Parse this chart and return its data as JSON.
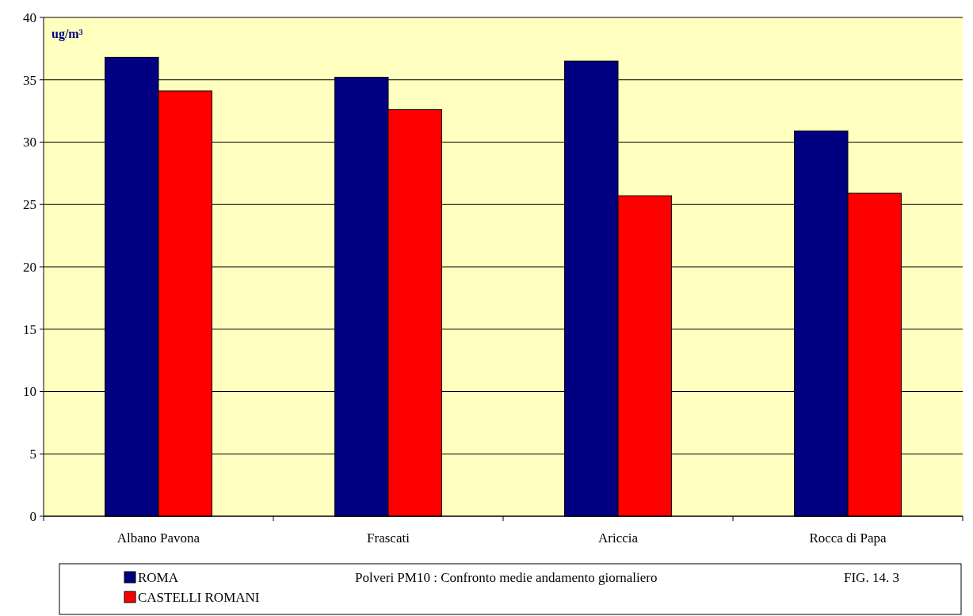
{
  "chart_data": {
    "type": "bar",
    "title": "Polveri PM10 : Confronto medie andamento giornaliero",
    "ylabel": "ug/m³",
    "annotations": [
      "FIG. 14. 3"
    ],
    "categories": [
      "Albano Pavona",
      "Frascati",
      "Ariccia",
      "Rocca di Papa"
    ],
    "series": [
      {
        "name": "ROMA",
        "color": "#000080",
        "values": [
          36.8,
          35.2,
          36.5,
          30.9
        ]
      },
      {
        "name": "CASTELLI ROMANI",
        "color": "#ff0000",
        "values": [
          34.1,
          32.6,
          25.7,
          25.9
        ]
      }
    ],
    "ylim": [
      0,
      40
    ],
    "yticks": [
      0,
      5,
      10,
      15,
      20,
      25,
      30,
      35,
      40
    ],
    "grid": "y",
    "legend": "bottom"
  }
}
